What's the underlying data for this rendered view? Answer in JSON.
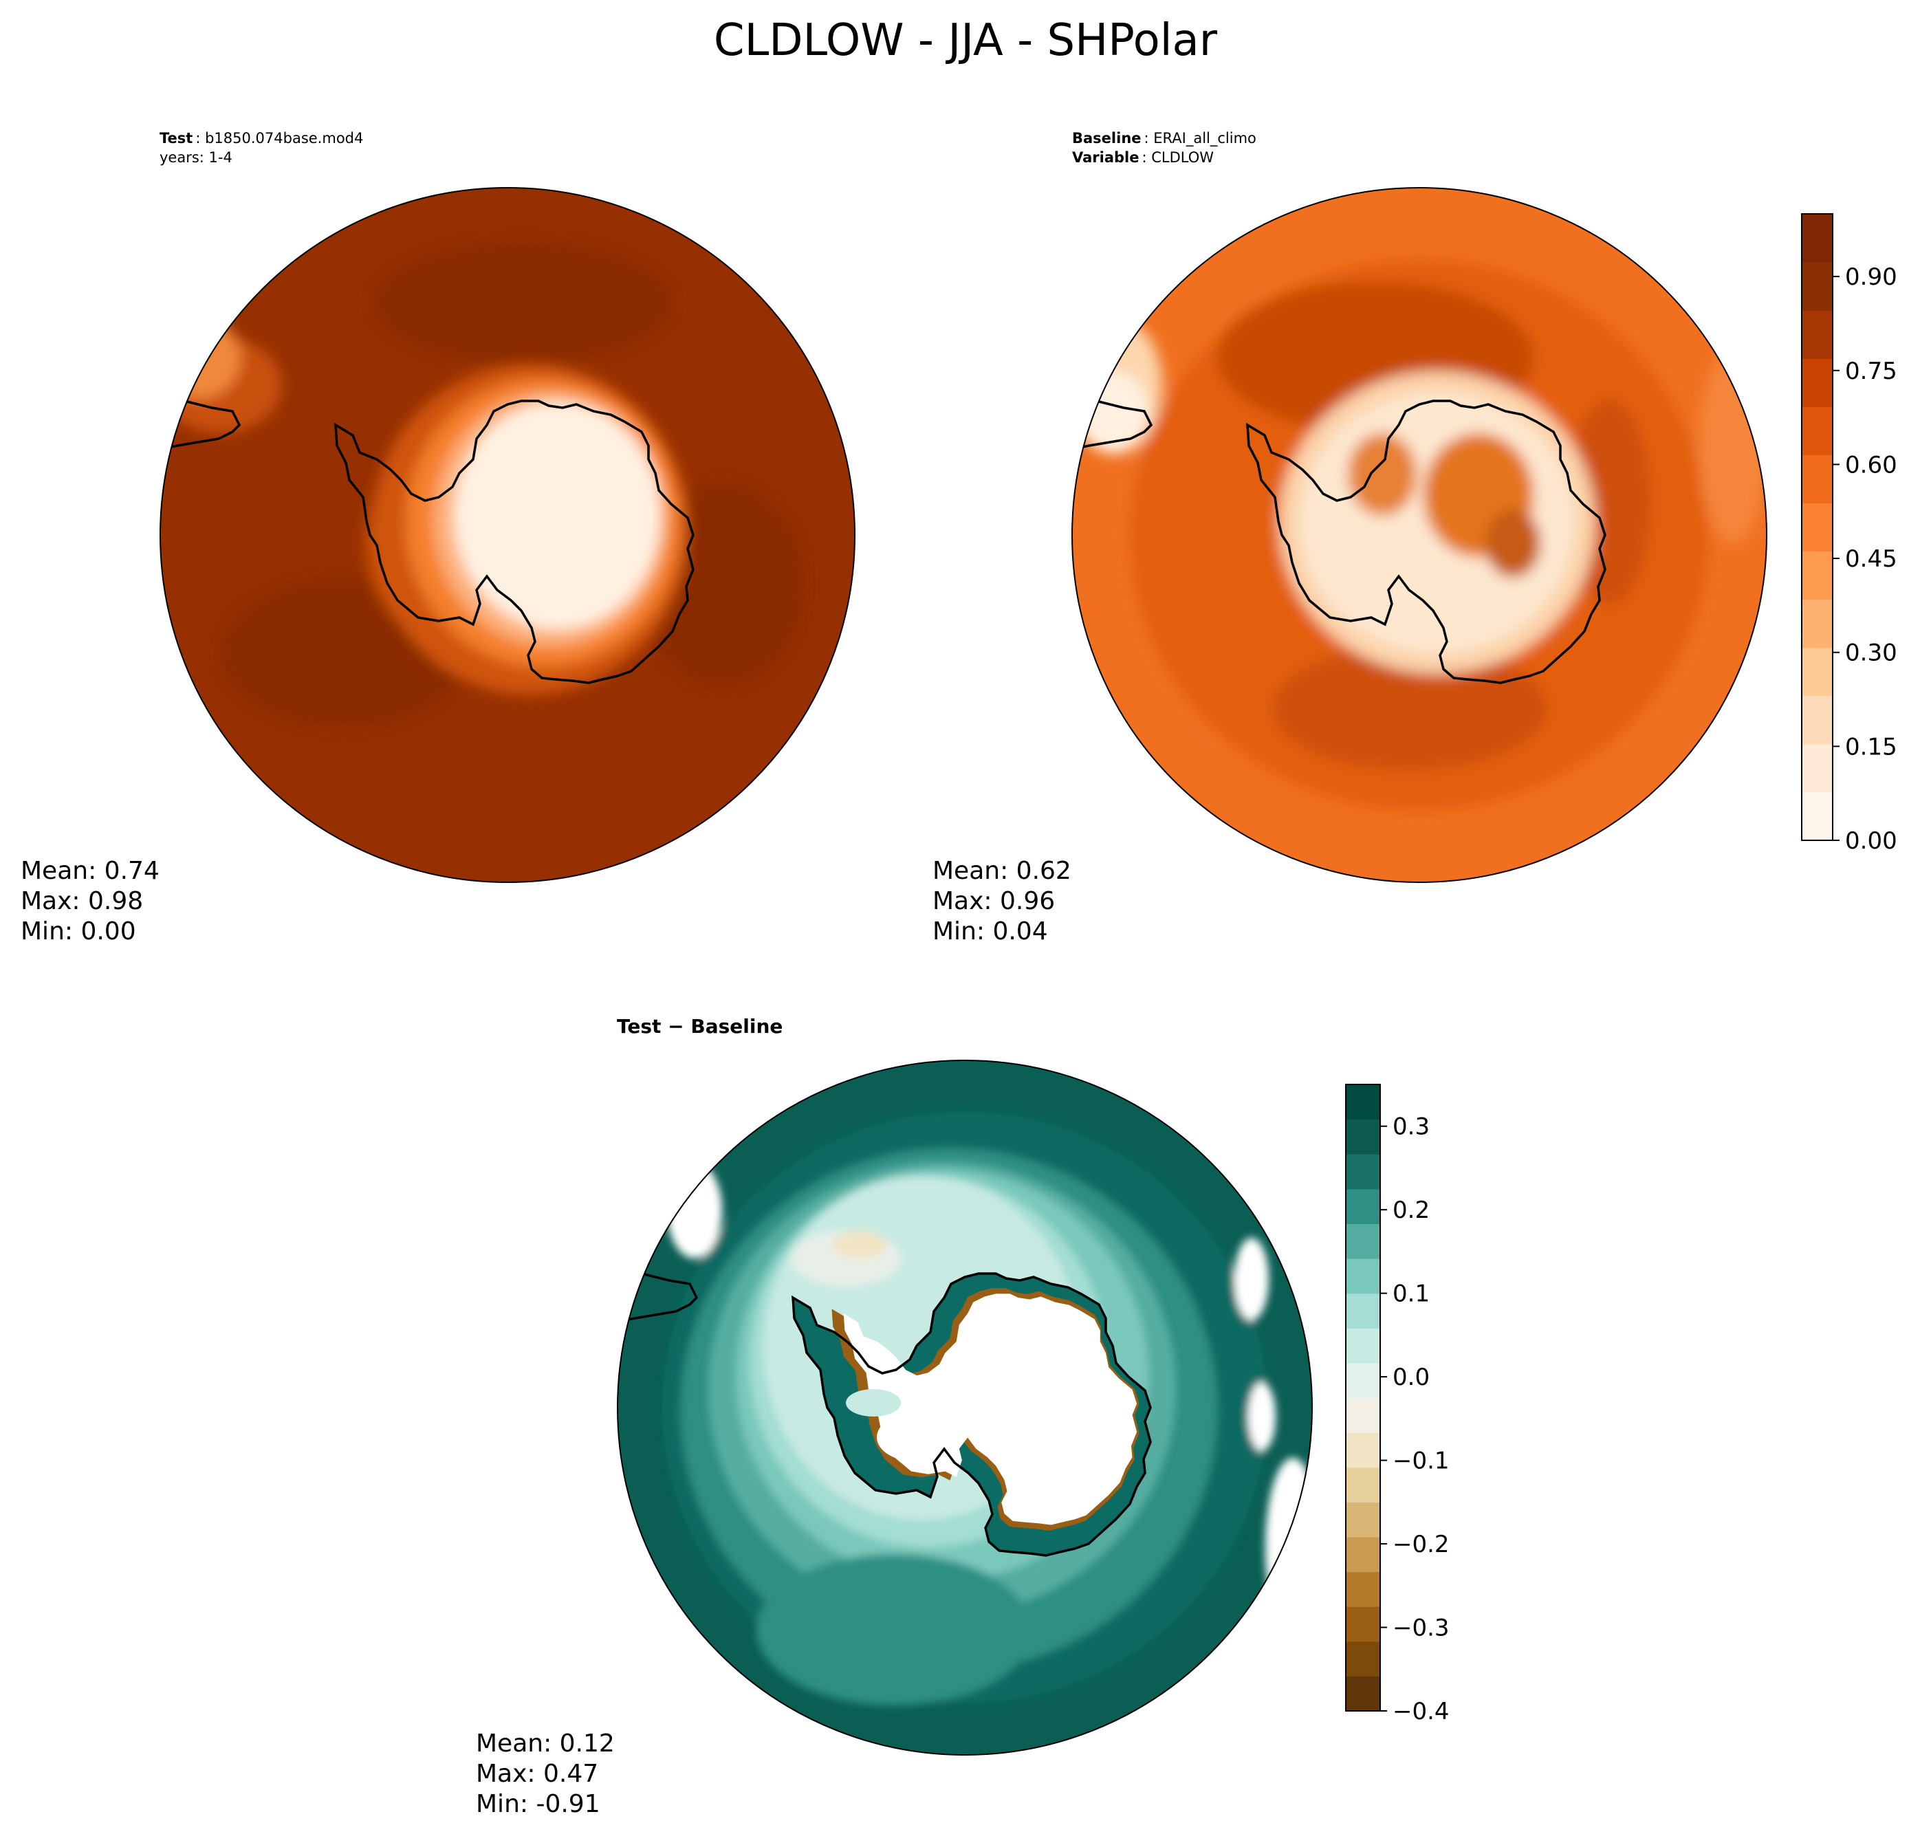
{
  "figure": {
    "title": "CLDLOW - JJA - SHPolar"
  },
  "panels": {
    "test": {
      "label_bold": "Test",
      "label_value": "b1850.074base.mod4",
      "label_line2": "years: 1-4",
      "stats": {
        "mean": "Mean:  0.74",
        "max": "Max:  0.98",
        "min": "Min:  0.00"
      }
    },
    "baseline": {
      "label_bold": "Baseline",
      "label_value": "ERAI_all_climo",
      "label2_bold": "Variable",
      "label2_value": "CLDLOW",
      "stats": {
        "mean": "Mean:  0.62",
        "max": "Max:  0.96",
        "min": "Min:  0.04"
      }
    },
    "diff": {
      "label": "Test − Baseline",
      "stats": {
        "mean": "Mean:  0.12",
        "max": "Max:  0.47",
        "min": "Min: -0.91"
      }
    }
  },
  "colorbars": {
    "orange": {
      "cmap": "Oranges",
      "range": [
        0.0,
        1.0
      ],
      "ticks": [
        0.0,
        0.15,
        0.3,
        0.45,
        0.6,
        0.75,
        0.9
      ],
      "tick_labels": [
        "0.00",
        "0.15",
        "0.30",
        "0.45",
        "0.60",
        "0.75",
        "0.90"
      ],
      "colors": [
        "#fff5eb",
        "#feead6",
        "#fddbb8",
        "#fdc997",
        "#fdb272",
        "#fd9a4e",
        "#fa8230",
        "#f06b1a",
        "#e0560b",
        "#c84304",
        "#a63603",
        "#8a2e04",
        "#7f2704"
      ]
    },
    "diverging": {
      "cmap": "BrBG",
      "range": [
        -0.4,
        0.35
      ],
      "ticks": [
        -0.4,
        -0.3,
        -0.2,
        -0.1,
        0.0,
        0.1,
        0.2,
        0.3
      ],
      "tick_labels": [
        "−0.4",
        "−0.3",
        "−0.2",
        "−0.1",
        "0.0",
        "0.1",
        "0.2",
        "0.3"
      ],
      "colors": [
        "#5e3607",
        "#7c4a0a",
        "#9a5e14",
        "#b47a2c",
        "#c99a52",
        "#d8b676",
        "#e6cf9c",
        "#f1e4c4",
        "#f4f0e6",
        "#e3f2ee",
        "#c7eae3",
        "#a3ddd3",
        "#7ac8bb",
        "#54ada0",
        "#2f8f84",
        "#1a7168",
        "#0c5a50",
        "#014a40"
      ]
    }
  },
  "chart_data": [
    {
      "type": "heatmap",
      "title": "Test",
      "projection": "south-polar-stereographic",
      "variable": "CLDLOW",
      "season": "JJA",
      "stats": {
        "mean": 0.74,
        "max": 0.98,
        "min": 0.0
      },
      "colorbar": "orange"
    },
    {
      "type": "heatmap",
      "title": "Baseline",
      "projection": "south-polar-stereographic",
      "variable": "CLDLOW",
      "season": "JJA",
      "stats": {
        "mean": 0.62,
        "max": 0.96,
        "min": 0.04
      },
      "colorbar": "orange",
      "colorbar_ticks": [
        0.0,
        0.15,
        0.3,
        0.45,
        0.6,
        0.75,
        0.9
      ]
    },
    {
      "type": "heatmap",
      "title": "Test − Baseline",
      "projection": "south-polar-stereographic",
      "variable": "CLDLOW",
      "season": "JJA",
      "stats": {
        "mean": 0.12,
        "max": 0.47,
        "min": -0.91
      },
      "colorbar": "diverging",
      "colorbar_ticks": [
        -0.4,
        -0.3,
        -0.2,
        -0.1,
        0.0,
        0.1,
        0.2,
        0.3
      ]
    }
  ]
}
